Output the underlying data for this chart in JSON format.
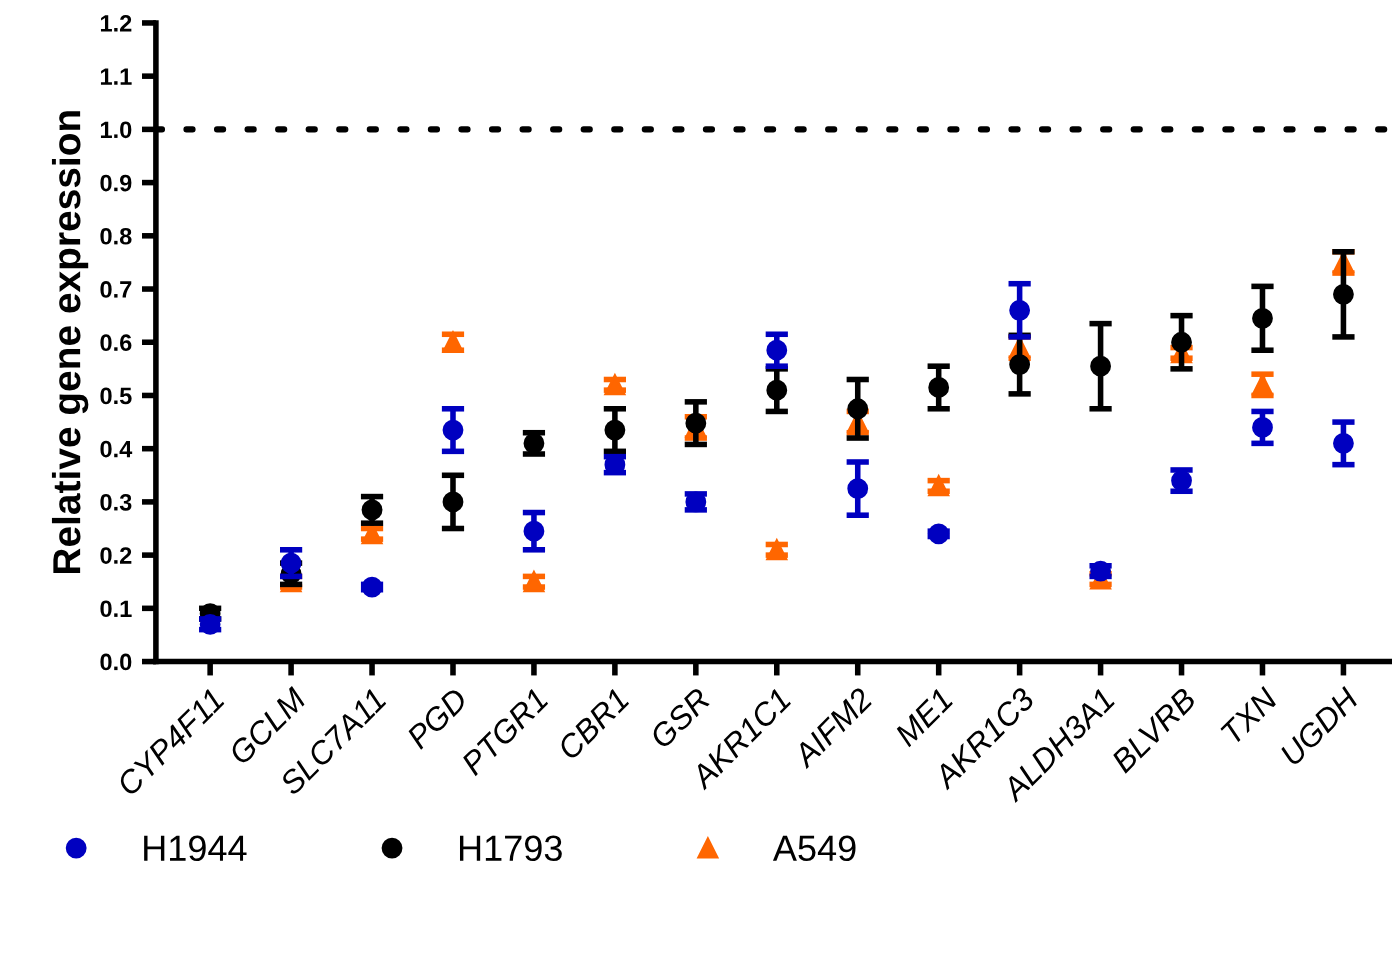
{
  "chart_data": {
    "type": "scatter",
    "ylabel": "Relative gene expression",
    "categories": [
      "CYP4F11",
      "GCLM",
      "SLC7A11",
      "PGD",
      "PTGR1",
      "CBR1",
      "GSR",
      "AKR1C1",
      "AIFM2",
      "ME1",
      "AKR1C3",
      "ALDH3A1",
      "BLVRB",
      "TXN",
      "UGDH"
    ],
    "series": [
      {
        "name": "H1944",
        "color": "#0000c0",
        "marker": "circle",
        "values": [
          0.07,
          0.185,
          0.14,
          0.435,
          0.245,
          0.37,
          0.3,
          0.585,
          0.325,
          0.24,
          0.66,
          0.17,
          0.34,
          0.44,
          0.41
        ],
        "errors": [
          0.01,
          0.025,
          0.005,
          0.04,
          0.035,
          0.015,
          0.015,
          0.03,
          0.05,
          0.005,
          0.05,
          0.01,
          0.02,
          0.03,
          0.04
        ]
      },
      {
        "name": "H1793",
        "color": "#000000",
        "marker": "circle",
        "values": [
          0.09,
          0.165,
          0.285,
          0.3,
          0.41,
          0.435,
          0.448,
          0.51,
          0.475,
          0.515,
          0.558,
          0.555,
          0.6,
          0.645,
          0.69
        ],
        "errors": [
          0.01,
          0.02,
          0.025,
          0.05,
          0.02,
          0.04,
          0.04,
          0.04,
          0.055,
          0.04,
          0.055,
          0.08,
          0.05,
          0.06,
          0.08
        ]
      },
      {
        "name": "A549",
        "color": "#ff6600",
        "marker": "triangle",
        "values": [
          null,
          0.15,
          0.24,
          0.6,
          0.15,
          0.52,
          0.44,
          0.21,
          0.45,
          0.33,
          0.59,
          0.155,
          0.58,
          0.52,
          0.75
        ],
        "errors": [
          null,
          0.01,
          0.01,
          0.015,
          0.01,
          0.01,
          0.02,
          0.01,
          0.02,
          0.01,
          0.02,
          0.01,
          0.01,
          0.02,
          0.02
        ]
      }
    ],
    "ylim": [
      0,
      1.2
    ],
    "yticks": [
      {
        "value": 0,
        "label": "0.0"
      },
      {
        "value": 0.1,
        "label": "0.1"
      },
      {
        "value": 0.2,
        "label": "0.2"
      },
      {
        "value": 0.3,
        "label": "0.3"
      },
      {
        "value": 0.4,
        "label": "0.4"
      },
      {
        "value": 0.5,
        "label": "0.5"
      },
      {
        "value": 0.6,
        "label": "0.6"
      },
      {
        "value": 0.7,
        "label": "0.7"
      },
      {
        "value": 0.8,
        "label": "0.8"
      },
      {
        "value": 0.9,
        "label": "0.9"
      },
      {
        "value": 1.0,
        "label": "1.0"
      },
      {
        "value": 1.1,
        "label": "1.1"
      },
      {
        "value": 1.2,
        "label": "1.2"
      }
    ],
    "ref_lines": [
      {
        "axis": "y",
        "value": 1.0,
        "line_style": "dotted",
        "color": "#000000"
      }
    ],
    "grid": false,
    "legend": "bottom"
  }
}
